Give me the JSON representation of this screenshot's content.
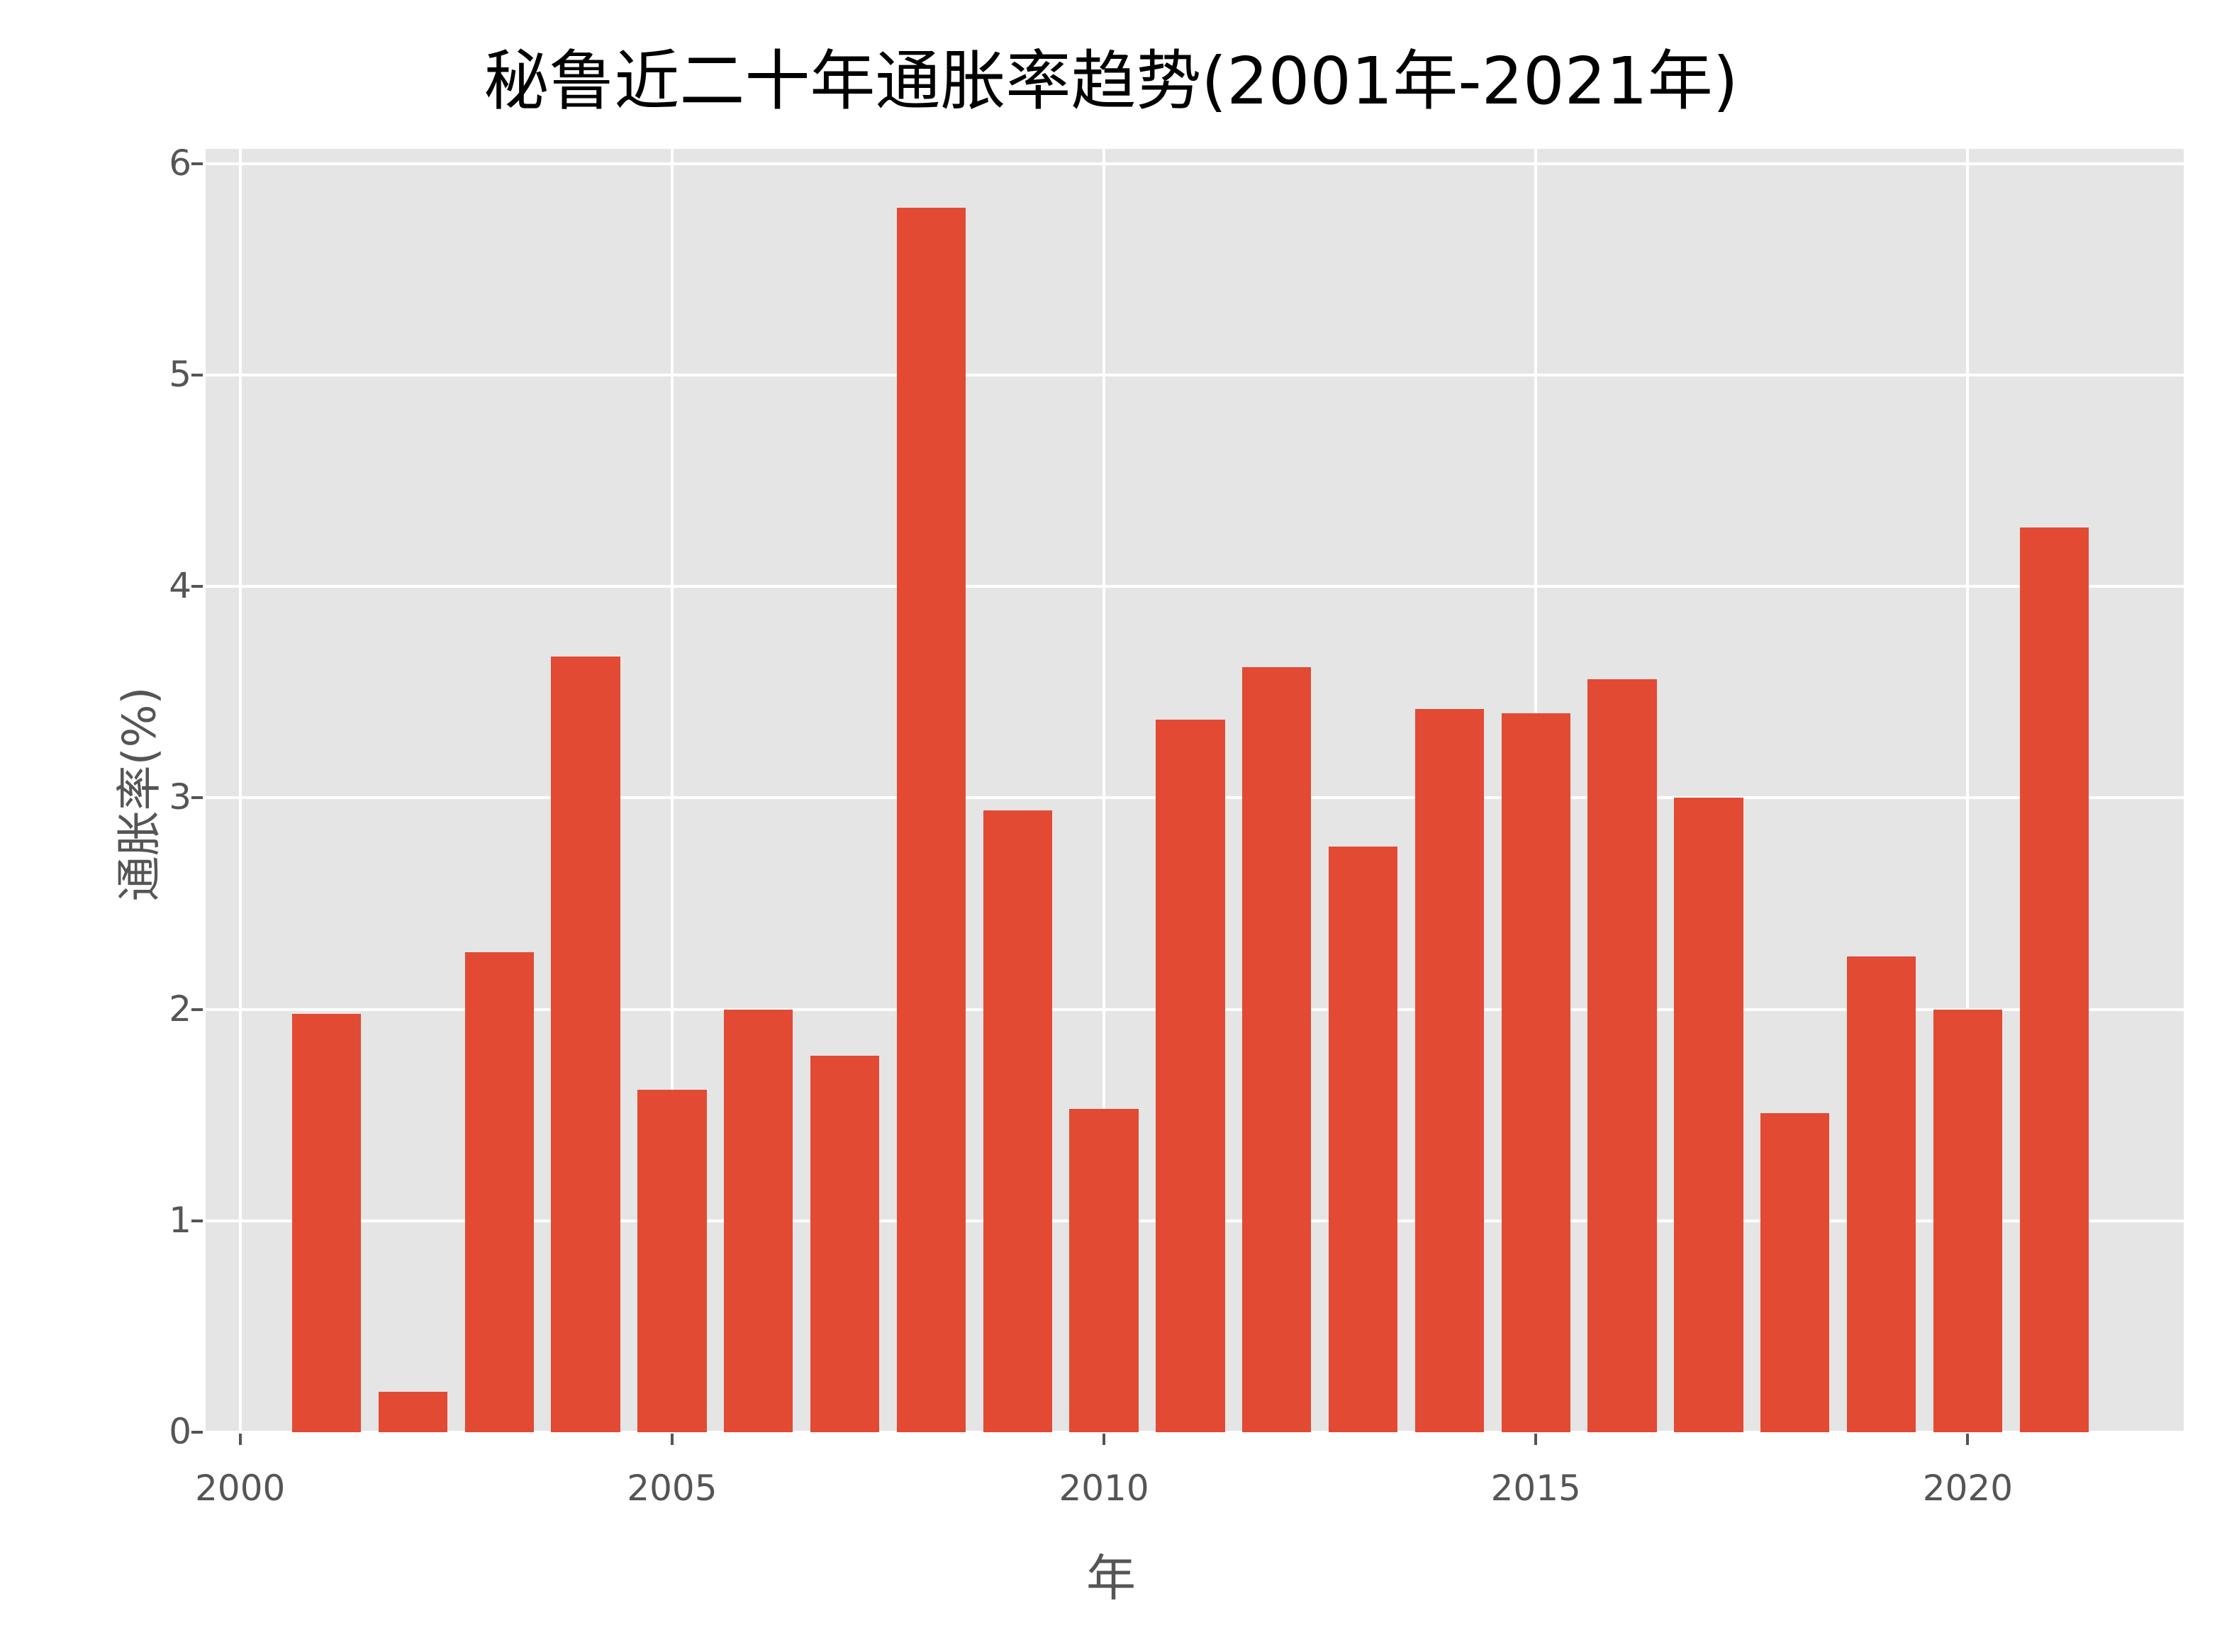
{
  "chart_data": {
    "type": "bar",
    "title": "秘鲁近二十年通胀率趋势(2001年-2021年)",
    "xlabel": "年",
    "ylabel": "通胀率(%)",
    "categories": [
      2001,
      2002,
      2003,
      2004,
      2005,
      2006,
      2007,
      2008,
      2009,
      2010,
      2011,
      2012,
      2013,
      2014,
      2015,
      2016,
      2017,
      2018,
      2019,
      2020,
      2021
    ],
    "values": [
      1.98,
      0.19,
      2.27,
      3.67,
      1.62,
      2.0,
      1.78,
      5.79,
      2.94,
      1.53,
      3.37,
      3.62,
      2.77,
      3.42,
      3.4,
      3.56,
      3.0,
      1.51,
      2.25,
      2.0,
      4.28
    ],
    "xticks": [
      "2000",
      "2005",
      "2010",
      "2015",
      "2020"
    ],
    "yticks": [
      "0",
      "1",
      "2",
      "3",
      "4",
      "5",
      "6"
    ],
    "xlim": [
      1999.6,
      2022.5
    ],
    "ylim": [
      0,
      6.07
    ],
    "grid": true,
    "bar_color": "#e24a33",
    "background": "#e5e5e5"
  }
}
